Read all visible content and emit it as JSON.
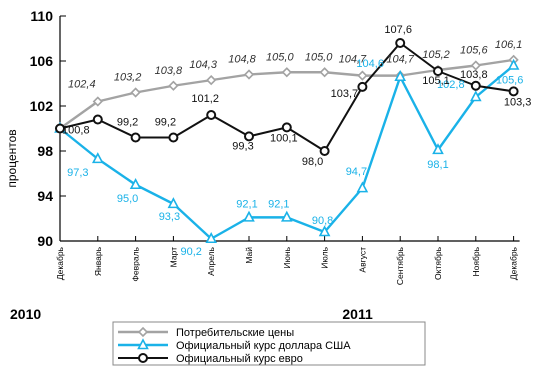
{
  "chart_data": {
    "type": "line",
    "ylabel": "процентов",
    "ylim": [
      90,
      110
    ],
    "yticks": [
      90,
      94,
      98,
      102,
      106,
      110
    ],
    "categories": [
      "Декабрь",
      "Январь",
      "Февраль",
      "Март",
      "Апрель",
      "Май",
      "Июнь",
      "Июль",
      "Август",
      "Сентябрь",
      "Октябрь",
      "Ноябрь",
      "Декабрь"
    ],
    "year_labels": [
      {
        "text": "2010",
        "category_index": 0
      },
      {
        "text": "2011",
        "category_index": 8
      }
    ],
    "grid": false,
    "legend_position": "bottom",
    "series": [
      {
        "name": "Потребительские цены",
        "color": "#a3a3a3",
        "marker": "diamond",
        "values": [
          100,
          102.4,
          103.2,
          103.8,
          104.3,
          104.8,
          105.0,
          105.0,
          104.7,
          104.7,
          105.2,
          105.6,
          106.1
        ],
        "labels": [
          "",
          "102,4",
          "103,2",
          "103,8",
          "104,3",
          "104,8",
          "105,0",
          "105,0",
          "104,7",
          "104,7",
          "105,2",
          "105,6",
          "106,1"
        ]
      },
      {
        "name": "Официальный курс доллара США",
        "color": "#1ab2e8",
        "marker": "triangle",
        "values": [
          100,
          97.3,
          95.0,
          93.3,
          90.2,
          92.1,
          92.1,
          90.8,
          94.7,
          104.6,
          98.1,
          102.8,
          105.6
        ],
        "labels": [
          "",
          "97,3",
          "95,0",
          "93,3",
          "90,2",
          "92,1",
          "92,1",
          "90,8",
          "94,7",
          "104,6",
          "98,1",
          "102,8",
          "105,6"
        ]
      },
      {
        "name": "Официальный курс евро",
        "color": "#111111",
        "marker": "circle",
        "values": [
          100,
          100.8,
          99.2,
          99.2,
          101.2,
          99.3,
          100.1,
          98.0,
          103.7,
          107.6,
          105.1,
          103.8,
          103.3
        ],
        "labels": [
          "",
          "100,8",
          "99,2",
          "99,2",
          "101,2",
          "99,3",
          "100,1",
          "98,0",
          "103,7",
          "107,6",
          "105,1",
          "103,8",
          "103,3"
        ]
      }
    ]
  }
}
